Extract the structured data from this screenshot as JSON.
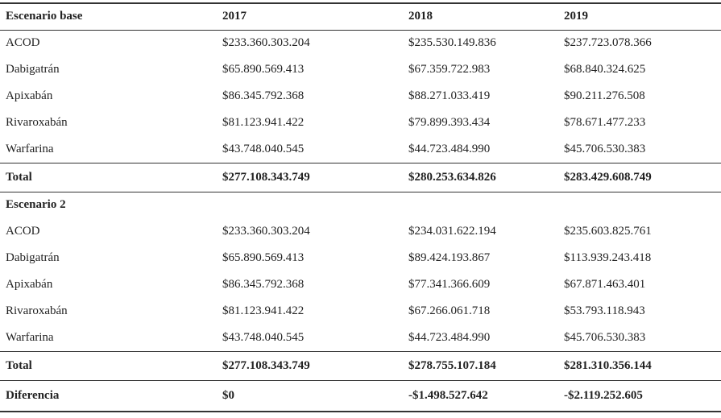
{
  "table": {
    "header": [
      "Escenario base",
      "2017",
      "2018",
      "2019"
    ],
    "rows": [
      [
        "ACOD",
        "$233.360.303.204",
        "$235.530.149.836",
        "$237.723.078.366"
      ],
      [
        "Dabigatrán",
        "$65.890.569.413",
        "$67.359.722.983",
        "$68.840.324.625"
      ],
      [
        "Apixabán",
        "$86.345.792.368",
        "$88.271.033.419",
        "$90.211.276.508"
      ],
      [
        "Rivaroxabán",
        "$81.123.941.422",
        "$79.899.393.434",
        "$78.671.477.233"
      ],
      [
        "Warfarina",
        "$43.748.040.545",
        "$44.723.484.990",
        "$45.706.530.383"
      ],
      [
        "Total",
        "$277.108.343.749",
        "$280.253.634.826",
        "$283.429.608.749"
      ],
      [
        "Escenario 2"
      ],
      [
        "ACOD",
        "$233.360.303.204",
        "$234.031.622.194",
        "$235.603.825.761"
      ],
      [
        "Dabigatrán",
        "$65.890.569.413",
        "$89.424.193.867",
        "$113.939.243.418"
      ],
      [
        "Apixabán",
        "$86.345.792.368",
        "$77.341.366.609",
        "$67.871.463.401"
      ],
      [
        "Rivaroxabán",
        "$81.123.941.422",
        "$67.266.061.718",
        "$53.793.118.943"
      ],
      [
        "Warfarina",
        "$43.748.040.545",
        "$44.723.484.990",
        "$45.706.530.383"
      ],
      [
        "Total",
        "$277.108.343.749",
        "$278.755.107.184",
        "$281.310.356.144"
      ],
      [
        "Diferencia",
        "$0",
        "-$1.498.527.642",
        "-$2.119.252.605"
      ]
    ]
  }
}
